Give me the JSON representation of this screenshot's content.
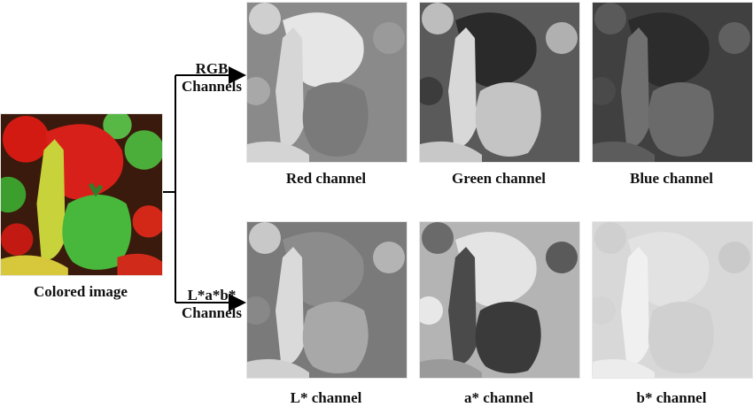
{
  "source": {
    "caption": "Colored image"
  },
  "branches": {
    "rgb": "RGB\nChannels",
    "lab": "L*a*b*\nChannels"
  },
  "channels": {
    "red": "Red channel",
    "green": "Green channel",
    "blue": "Blue channel",
    "l": "L* channel",
    "a": "a* channel",
    "b": "b* channel"
  },
  "colors": {
    "red_pepper": "#d61c14",
    "green_pepper": "#46b83a",
    "yellow_pepper": "#c8d23a",
    "arrow": "#000000"
  }
}
